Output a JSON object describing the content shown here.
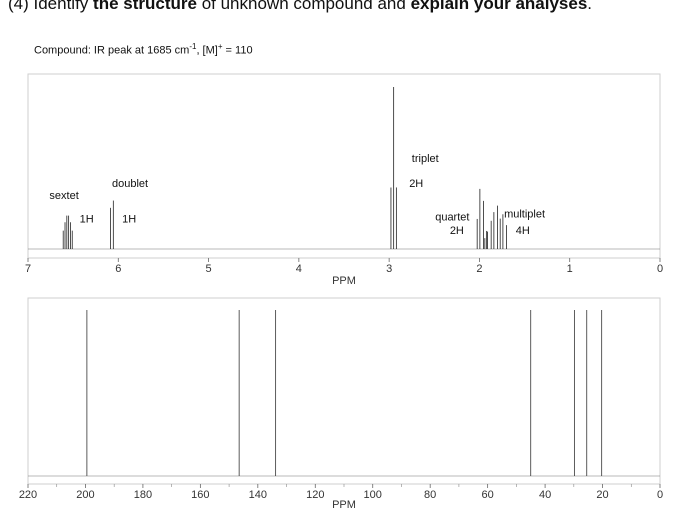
{
  "question": {
    "prefix": "(4) Identify ",
    "bold1": "the structure",
    "mid": " of unknown compound and ",
    "bold2": "explain your analyses",
    "suffix": "."
  },
  "compound": {
    "label": "Compound: IR peak at 1685 cm",
    "ir_exp": "-1",
    "mass": ", [M]",
    "mass_sup": "+",
    "mass_val": " = 110"
  },
  "chart_data": [
    {
      "type": "nmr-1h",
      "xlabel": "PPM",
      "xlim": [
        7,
        0
      ],
      "ticks": [
        7,
        6,
        5,
        4,
        3,
        2,
        1,
        0
      ],
      "peaks": [
        {
          "ppm": 6.56,
          "height": 0.2,
          "multiplicity": "sextet"
        },
        {
          "ppm": 6.07,
          "height": 0.29,
          "multiplicity": "doublet"
        },
        {
          "ppm": 2.95,
          "height": 0.97,
          "multiplicity": "triplet"
        },
        {
          "ppm": 1.98,
          "height": 0.36,
          "multiplicity": "quartet"
        },
        {
          "ppm": 1.82,
          "height": 0.26,
          "multiplicity": "multiplet"
        }
      ],
      "annotations": [
        {
          "text": "sextet",
          "ppm": 6.6,
          "level": 0.3
        },
        {
          "text": "1H",
          "ppm": 6.35,
          "level": 0.16
        },
        {
          "text": "doublet",
          "ppm": 5.87,
          "level": 0.37
        },
        {
          "text": "1H",
          "ppm": 5.88,
          "level": 0.16
        },
        {
          "text": "triplet",
          "ppm": 2.6,
          "level": 0.52
        },
        {
          "text": "2H",
          "ppm": 2.7,
          "level": 0.37
        },
        {
          "text": "quartet",
          "ppm": 2.3,
          "level": 0.17
        },
        {
          "text": "2H",
          "ppm": 2.25,
          "level": 0.09
        },
        {
          "text": "multiplet",
          "ppm": 1.5,
          "level": 0.19
        },
        {
          "text": "4H",
          "ppm": 1.52,
          "level": 0.09
        }
      ]
    },
    {
      "type": "nmr-13c",
      "xlabel": "PPM",
      "xlim": [
        220,
        0
      ],
      "ticks": [
        220,
        200,
        180,
        160,
        140,
        120,
        100,
        80,
        60,
        40,
        20,
        0
      ],
      "peaks": [
        {
          "ppm": 199.5
        },
        {
          "ppm": 146.5
        },
        {
          "ppm": 133.8
        },
        {
          "ppm": 45.0
        },
        {
          "ppm": 29.8
        },
        {
          "ppm": 25.5
        },
        {
          "ppm": 20.3
        }
      ]
    }
  ]
}
